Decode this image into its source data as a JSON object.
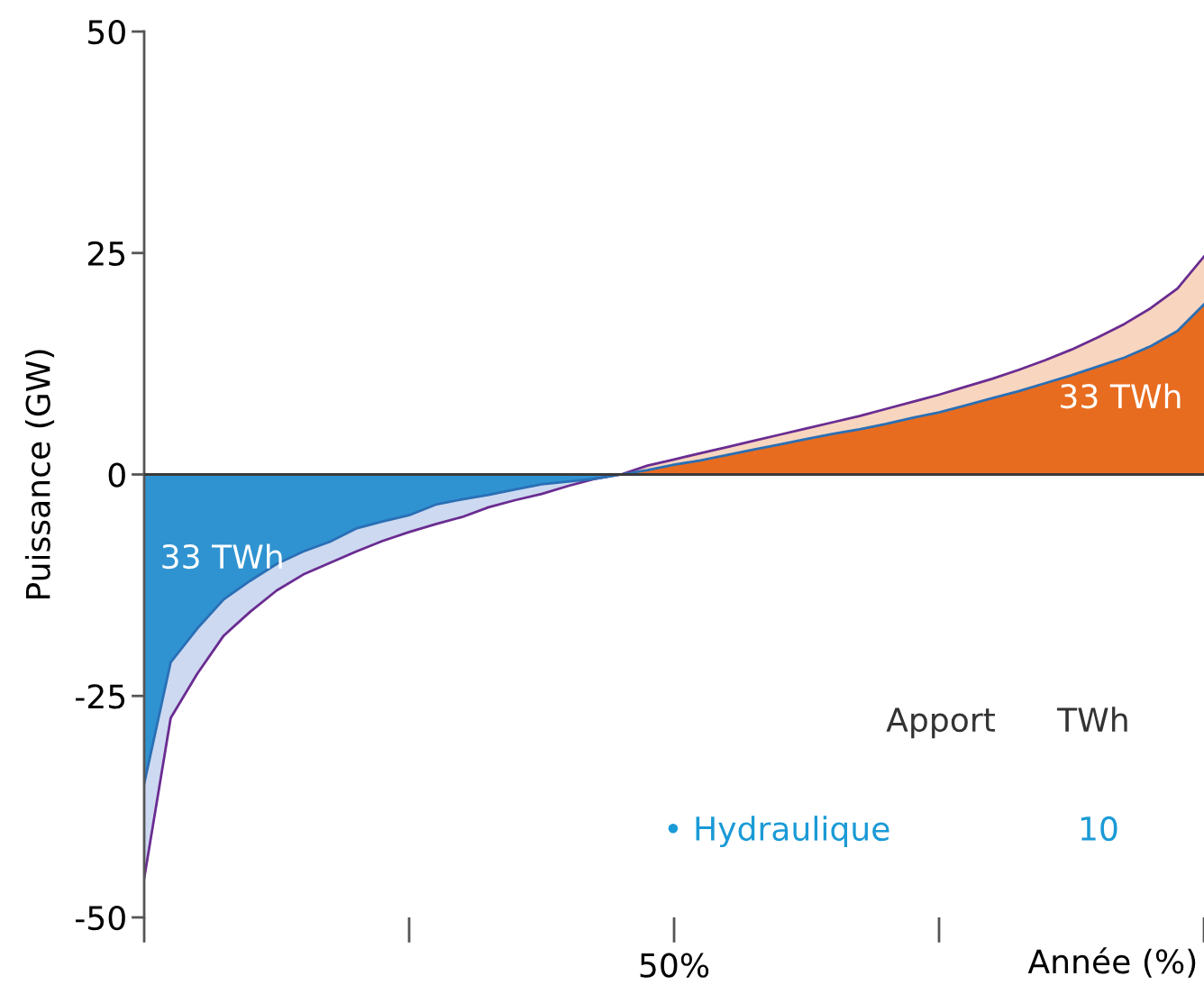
{
  "chart_data": {
    "type": "area",
    "ylabel": "Puissance (GW)",
    "xlabel": "Année (%)",
    "categories": [
      null,
      null,
      null,
      null,
      null,
      null,
      null,
      null,
      null,
      null,
      null,
      null,
      null,
      null,
      null,
      null,
      null,
      null,
      null,
      null,
      "50%",
      null,
      null,
      null,
      null,
      null,
      null,
      null,
      null,
      null,
      null,
      null,
      null,
      null,
      null,
      null,
      null,
      null,
      null,
      null,
      null
    ],
    "ylim": [
      -50,
      50
    ],
    "yticks": [
      {
        "value": 50,
        "label": "50"
      },
      {
        "value": 25,
        "label": "25"
      },
      {
        "value": 0,
        "label": "0"
      },
      {
        "value": -25,
        "label": "-25"
      },
      {
        "value": -50,
        "label": "-50"
      }
    ],
    "grid": false,
    "legend": false,
    "ref_lines": [
      {
        "axis": "y",
        "value": 0,
        "color": "#3a3a3a"
      }
    ],
    "series": [
      {
        "color": "#cdd9f0",
        "values": [
          -45.6,
          -27.5,
          -22.5,
          -18.2,
          -15.5,
          -13.1,
          -11.3,
          -10,
          -8.7,
          -7.5,
          -6.5,
          -5.6,
          -4.8,
          -3.7,
          -2.9,
          -2.2,
          -1.3,
          -0.5,
          0,
          null,
          null,
          null,
          null,
          null,
          null,
          null,
          null,
          null,
          null,
          null,
          null,
          null,
          null,
          null,
          null,
          null,
          null,
          null,
          null,
          null,
          null
        ]
      },
      {
        "color": "#f8d5bf",
        "values": [
          null,
          null,
          null,
          null,
          null,
          null,
          null,
          null,
          null,
          null,
          null,
          null,
          null,
          null,
          null,
          null,
          null,
          null,
          0,
          1,
          1.7,
          2.4,
          3.1,
          3.8,
          4.5,
          5.2,
          5.9,
          6.6,
          7.4,
          8.2,
          9,
          9.9,
          10.8,
          11.8,
          12.9,
          14.1,
          15.5,
          17,
          18.8,
          21,
          24.6
        ]
      },
      {
        "color": "#3093d1",
        "values": [
          -34.9,
          -21.2,
          -17.4,
          -14.1,
          -12,
          -10.1,
          -8.7,
          -7.6,
          -6.1,
          -5.3,
          -4.6,
          -3.4,
          -2.8,
          -2.3,
          -1.7,
          -1.1,
          -0.8,
          -0.5,
          0,
          null,
          null,
          null,
          null,
          null,
          null,
          null,
          null,
          null,
          null,
          null,
          null,
          null,
          null,
          null,
          null,
          null,
          null,
          null,
          null,
          null,
          null
        ]
      },
      {
        "color": "#e86c1f",
        "values": [
          null,
          null,
          null,
          null,
          null,
          null,
          null,
          null,
          null,
          null,
          null,
          null,
          null,
          null,
          null,
          null,
          null,
          null,
          0,
          0.5,
          1.1,
          1.6,
          2.2,
          2.8,
          3.4,
          4,
          4.6,
          5.1,
          5.7,
          6.4,
          7,
          7.8,
          8.6,
          9.4,
          10.3,
          11.2,
          12.2,
          13.2,
          14.5,
          16.2,
          19.2
        ]
      },
      {
        "type": "line",
        "color": "#6a2c91",
        "values": [
          -45.6,
          -27.5,
          -22.5,
          -18.2,
          -15.5,
          -13.1,
          -11.3,
          -10,
          -8.7,
          -7.5,
          -6.5,
          -5.6,
          -4.8,
          -3.7,
          -2.9,
          -2.2,
          -1.3,
          -0.5,
          0,
          1,
          1.7,
          2.4,
          3.1,
          3.8,
          4.5,
          5.2,
          5.9,
          6.6,
          7.4,
          8.2,
          9,
          9.9,
          10.8,
          11.8,
          12.9,
          14.1,
          15.5,
          17,
          18.8,
          21,
          24.6
        ]
      },
      {
        "type": "line",
        "color": "#2a6fb5",
        "values": [
          -34.9,
          -21.2,
          -17.4,
          -14.1,
          -12,
          -10.1,
          -8.7,
          -7.6,
          -6.1,
          -5.3,
          -4.6,
          -3.4,
          -2.8,
          -2.3,
          -1.7,
          -1.1,
          -0.8,
          -0.5,
          0,
          0.5,
          1.1,
          1.6,
          2.2,
          2.8,
          3.4,
          4,
          4.6,
          5.1,
          5.7,
          6.4,
          7,
          7.8,
          8.6,
          9.4,
          10.3,
          11.2,
          12.2,
          13.2,
          14.5,
          16.2,
          19.2
        ]
      }
    ],
    "annotations": [
      "33 TWh",
      "33 TWh",
      "Apport",
      "TWh",
      "• Hydraulique",
      "10"
    ]
  }
}
